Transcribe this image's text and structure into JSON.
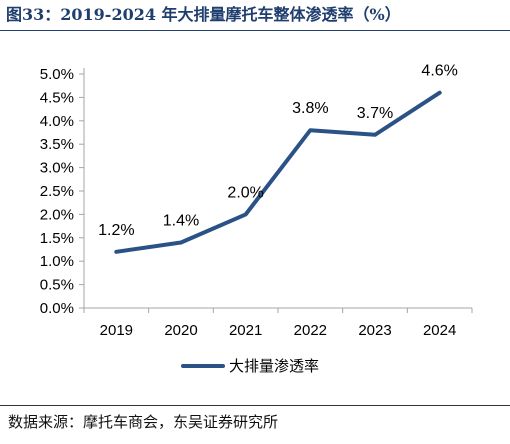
{
  "figure": {
    "title": "图33：2019-2024 年大排量摩托车整体渗透率（%）",
    "source": "数据来源：摩托车商会，东吴证券研究所"
  },
  "colors": {
    "title": "#1f3e6e",
    "series_line": "#2a5286",
    "axis": "#a6a6a6"
  },
  "chart_data": {
    "type": "line",
    "title": "",
    "xlabel": "",
    "ylabel": "",
    "categories": [
      "2019",
      "2020",
      "2021",
      "2022",
      "2023",
      "2024"
    ],
    "series": [
      {
        "name": "大排量渗透率",
        "values": [
          1.2,
          1.4,
          2.0,
          3.8,
          3.7,
          4.6
        ],
        "labels": [
          "1.2%",
          "1.4%",
          "2.0%",
          "3.8%",
          "3.7%",
          "4.6%"
        ]
      }
    ],
    "ylim": [
      0,
      5
    ],
    "y_ticks": [
      0,
      0.5,
      1.0,
      1.5,
      2.0,
      2.5,
      3.0,
      3.5,
      4.0,
      4.5,
      5.0
    ],
    "y_tick_labels": [
      "0.0%",
      "0.5%",
      "1.0%",
      "1.5%",
      "2.0%",
      "2.5%",
      "3.0%",
      "3.5%",
      "4.0%",
      "4.5%",
      "5.0%"
    ],
    "grid": false,
    "legend_position": "bottom-center"
  }
}
